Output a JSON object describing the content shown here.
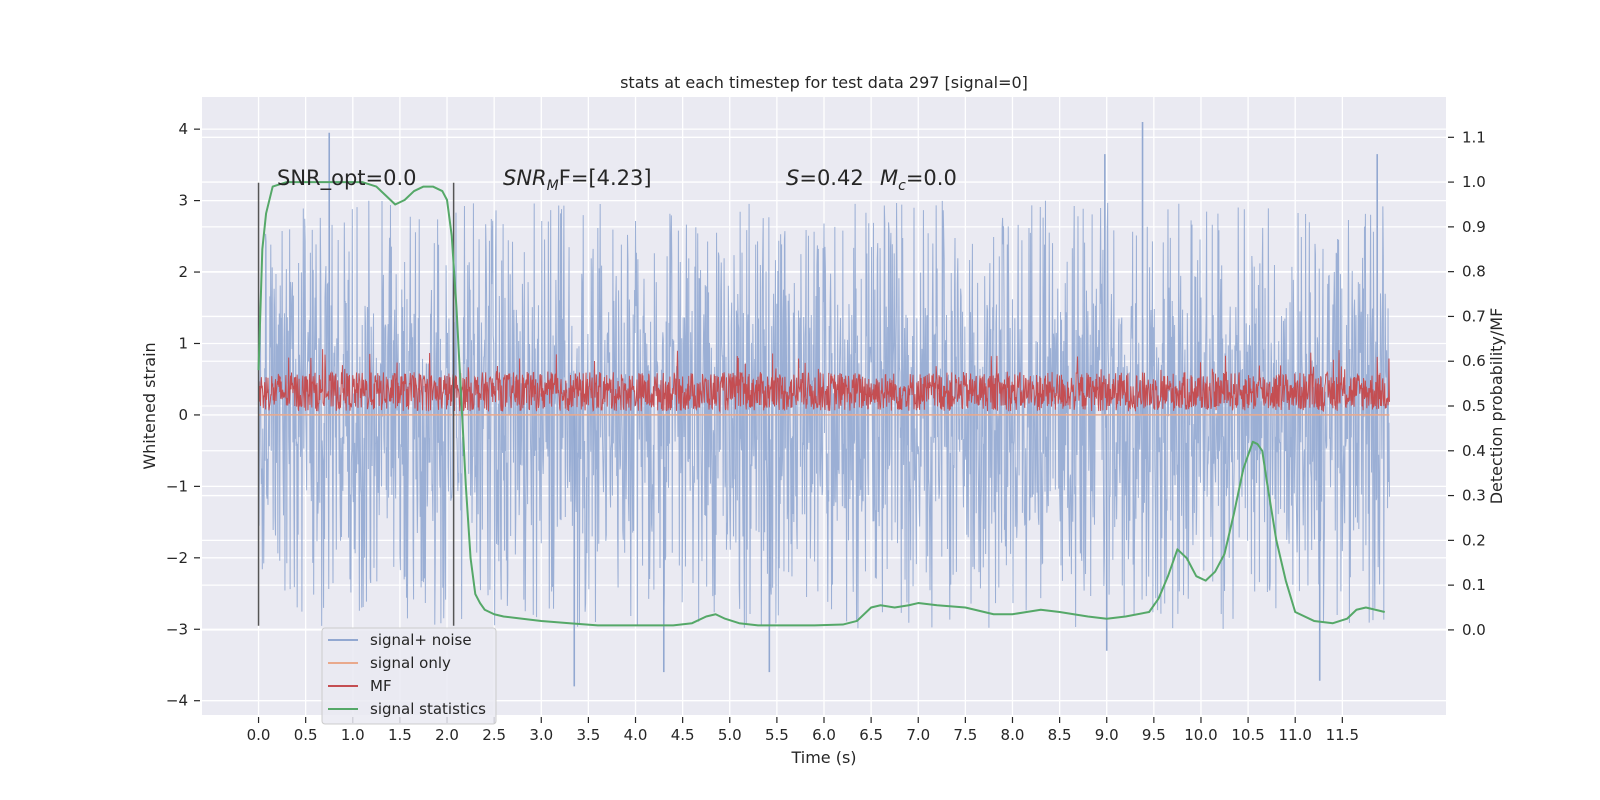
{
  "chart_data": {
    "type": "line",
    "title": "stats at each timestep for test data 297 [signal=0]",
    "xlabel": "Time (s)",
    "ylabel_left": "Whitened strain",
    "ylabel_right": "Detection probability/MF",
    "xlim": [
      -0.6,
      12.6
    ],
    "ylim_left": [
      -4.2,
      4.45
    ],
    "ylim_right": [
      -0.19,
      1.19
    ],
    "x_ticks": [
      "0.0",
      "0.5",
      "1.0",
      "1.5",
      "2.0",
      "2.5",
      "3.0",
      "3.5",
      "4.0",
      "4.5",
      "5.0",
      "5.5",
      "6.0",
      "6.5",
      "7.0",
      "7.5",
      "8.0",
      "8.5",
      "9.0",
      "9.5",
      "10.0",
      "10.5",
      "11.0",
      "11.5"
    ],
    "y_ticks_left": [
      4,
      3,
      2,
      1,
      0,
      -1,
      -2,
      -3,
      -4
    ],
    "y_ticks_left_labels": [
      "4",
      "3",
      "2",
      "1",
      "0",
      "−1",
      "−2",
      "−3",
      "−4"
    ],
    "y_ticks_right": [
      1.1,
      1.0,
      0.9,
      0.8,
      0.7,
      0.6,
      0.5,
      0.4,
      0.3,
      0.2,
      0.1,
      0.0
    ],
    "y_ticks_right_labels": [
      "1.1",
      "1.0",
      "0.9",
      "0.8",
      "0.7",
      "0.6",
      "0.5",
      "0.4",
      "0.3",
      "0.2",
      "0.1",
      "0.0"
    ],
    "grid": true,
    "legend_position": "lower-left",
    "series": [
      {
        "name": "signal+ noise",
        "color": "#92a8d1",
        "axis": "left",
        "x_range": [
          0.0,
          12.0
        ],
        "typical_range": [
          -1.6,
          1.6
        ],
        "extremes": [
          {
            "x": 0.75,
            "y": 3.95
          },
          {
            "x": 9.38,
            "y": 4.1
          },
          {
            "x": 11.87,
            "y": 3.65
          },
          {
            "x": 8.98,
            "y": 3.65
          },
          {
            "x": 3.35,
            "y": -3.8
          },
          {
            "x": 4.3,
            "y": -3.6
          },
          {
            "x": 5.42,
            "y": -3.6
          },
          {
            "x": 11.26,
            "y": -3.72
          },
          {
            "x": 9.0,
            "y": -3.3
          }
        ]
      },
      {
        "name": "signal only",
        "color": "#e9a98c",
        "axis": "left",
        "x": [
          0.0,
          12.0
        ],
        "y": [
          0.0,
          0.0
        ]
      },
      {
        "name": "MF",
        "color": "#c44e52",
        "axis": "left",
        "x_range": [
          0.0,
          12.0
        ],
        "typical_range": [
          0.05,
          0.6
        ],
        "max": 0.93
      },
      {
        "name": "signal statistics",
        "color": "#55a868",
        "axis": "right",
        "x": [
          0.0,
          0.04,
          0.08,
          0.15,
          0.3,
          0.6,
          0.9,
          1.1,
          1.25,
          1.35,
          1.45,
          1.55,
          1.65,
          1.75,
          1.85,
          1.95,
          2.0,
          2.05,
          2.1,
          2.15,
          2.2,
          2.25,
          2.3,
          2.35,
          2.4,
          2.5,
          2.6,
          2.8,
          3.0,
          3.3,
          3.6,
          4.0,
          4.4,
          4.6,
          4.75,
          4.85,
          4.95,
          5.1,
          5.3,
          5.6,
          5.9,
          6.2,
          6.35,
          6.5,
          6.6,
          6.75,
          6.9,
          7.0,
          7.2,
          7.5,
          7.8,
          8.0,
          8.15,
          8.3,
          8.5,
          8.8,
          9.0,
          9.2,
          9.45,
          9.55,
          9.65,
          9.75,
          9.85,
          9.95,
          10.05,
          10.15,
          10.25,
          10.35,
          10.45,
          10.55,
          10.6,
          10.65,
          10.7,
          10.8,
          10.9,
          11.0,
          11.2,
          11.4,
          11.55,
          11.65,
          11.75,
          11.85,
          11.95
        ],
        "y": [
          0.58,
          0.85,
          0.93,
          0.99,
          1.0,
          1.0,
          1.0,
          1.0,
          0.99,
          0.97,
          0.95,
          0.96,
          0.98,
          0.99,
          0.99,
          0.98,
          0.96,
          0.88,
          0.72,
          0.52,
          0.32,
          0.16,
          0.08,
          0.06,
          0.045,
          0.035,
          0.03,
          0.025,
          0.02,
          0.015,
          0.01,
          0.01,
          0.01,
          0.015,
          0.03,
          0.035,
          0.025,
          0.015,
          0.01,
          0.01,
          0.01,
          0.012,
          0.02,
          0.05,
          0.055,
          0.05,
          0.055,
          0.06,
          0.055,
          0.05,
          0.035,
          0.035,
          0.04,
          0.045,
          0.04,
          0.03,
          0.025,
          0.03,
          0.04,
          0.07,
          0.12,
          0.18,
          0.16,
          0.12,
          0.11,
          0.13,
          0.17,
          0.26,
          0.36,
          0.42,
          0.415,
          0.4,
          0.33,
          0.2,
          0.11,
          0.04,
          0.02,
          0.015,
          0.025,
          0.045,
          0.05,
          0.045,
          0.04
        ]
      }
    ],
    "vertical_lines": [
      {
        "x": 0.0,
        "y_range": [
          -2.95,
          3.25
        ]
      },
      {
        "x": 2.07,
        "y_range": [
          -2.95,
          3.25
        ]
      }
    ],
    "annotations": {
      "snr_opt": "SNR_opt=0.0",
      "snr_mf_main": "SNR",
      "snr_mf_sub": "M",
      "snr_mf_rest": "F=[4.23]",
      "s_main": "S",
      "s_rest": "=0.42",
      "mc_main": "M",
      "mc_sub": "c",
      "mc_rest": "=0.0"
    }
  }
}
